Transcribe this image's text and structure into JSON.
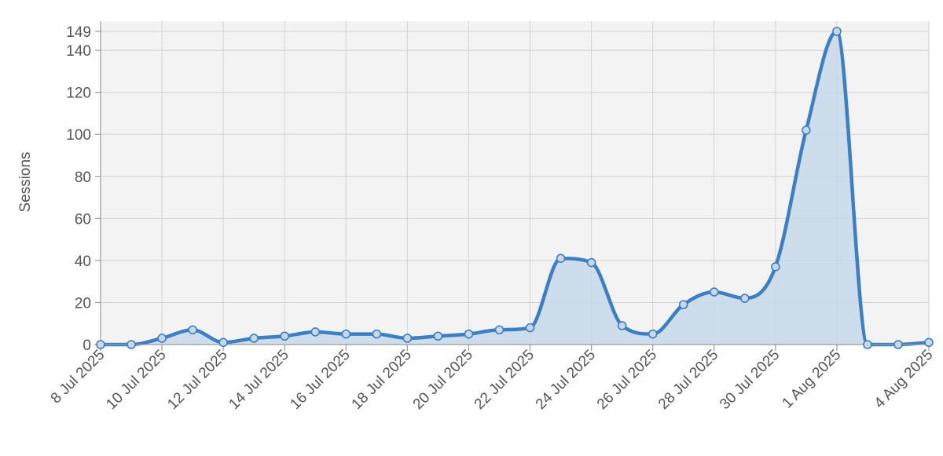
{
  "chart_data": {
    "type": "area",
    "ylabel": "Sessions",
    "xlabel": "",
    "ylim": [
      0,
      149
    ],
    "y_ticks": [
      0,
      20,
      40,
      60,
      80,
      100,
      120,
      140,
      149
    ],
    "x_tick_labels": [
      "8 Jul 2025",
      "10 Jul 2025",
      "12 Jul 2025",
      "14 Jul 2025",
      "16 Jul 2025",
      "18 Jul 2025",
      "20 Jul 2025",
      "22 Jul 2025",
      "24 Jul 2025",
      "26 Jul 2025",
      "28 Jul 2025",
      "30 Jul 2025",
      "1 Aug 2025",
      "4 Aug 2025"
    ],
    "x_tick_dates": [
      "2025-07-08",
      "2025-07-10",
      "2025-07-12",
      "2025-07-14",
      "2025-07-16",
      "2025-07-18",
      "2025-07-20",
      "2025-07-22",
      "2025-07-24",
      "2025-07-26",
      "2025-07-28",
      "2025-07-30",
      "2025-08-01",
      "2025-08-04"
    ],
    "grid": true,
    "series": [
      {
        "x": [
          "2025-07-08",
          "2025-07-09",
          "2025-07-10",
          "2025-07-11",
          "2025-07-12",
          "2025-07-13",
          "2025-07-14",
          "2025-07-15",
          "2025-07-16",
          "2025-07-17",
          "2025-07-18",
          "2025-07-19",
          "2025-07-20",
          "2025-07-21",
          "2025-07-22",
          "2025-07-23",
          "2025-07-24",
          "2025-07-25",
          "2025-07-26",
          "2025-07-27",
          "2025-07-28",
          "2025-07-29",
          "2025-07-30",
          "2025-07-31",
          "2025-08-01",
          "2025-08-02",
          "2025-08-03",
          "2025-08-04"
        ],
        "values": [
          0,
          0,
          3,
          7,
          1,
          3,
          4,
          6,
          5,
          5,
          3,
          4,
          5,
          7,
          8,
          41,
          39,
          9,
          5,
          19,
          25,
          22,
          37,
          102,
          149,
          0,
          0,
          1
        ]
      }
    ]
  },
  "colors": {
    "line": "#3d7fc4",
    "fill": "#c6d8ea",
    "plot_background": "#f3f3f3",
    "grid": "#d2d2d2",
    "axis": "#9a9a9a",
    "text": "#555555"
  }
}
